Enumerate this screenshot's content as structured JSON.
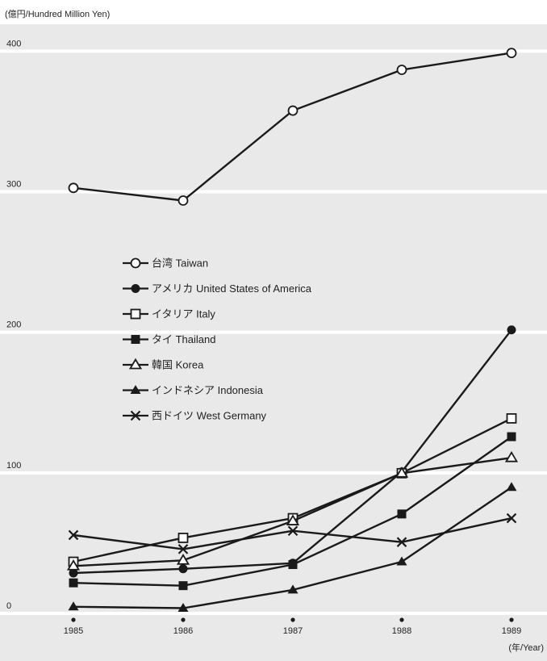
{
  "chart_data": {
    "type": "line",
    "y_unit_label": "(億円/Hundred Million Yen)",
    "x_unit_label": "(年/Year)",
    "title": "",
    "xlabel": "",
    "ylabel": "",
    "x": [
      1985,
      1986,
      1987,
      1988,
      1989
    ],
    "x_tick_labels": [
      "1985",
      "1986",
      "1987",
      "1988",
      "1989"
    ],
    "ylim": [
      0,
      410
    ],
    "y_ticks": [
      0,
      100,
      200,
      300,
      400
    ],
    "y_tick_labels": [
      "0",
      "100",
      "200",
      "300",
      "400"
    ],
    "grid": "horizontal",
    "legend_position": "center-left",
    "background": "#e9e9e9",
    "grid_color": "#ffffff",
    "line_color": "#1a1a1a",
    "series": [
      {
        "name": "台湾 Taiwan",
        "marker": "circle-open",
        "values": [
          301,
          292,
          356,
          385,
          397
        ]
      },
      {
        "name": "アメリカ United States of America",
        "marker": "circle-filled",
        "values": [
          27,
          30,
          34,
          99,
          200
        ]
      },
      {
        "name": "イタリア Italy",
        "marker": "square-open",
        "values": [
          35,
          52,
          66,
          98,
          137
        ]
      },
      {
        "name": "タイ Thailand",
        "marker": "square-filled",
        "values": [
          20,
          18,
          33,
          69,
          124
        ]
      },
      {
        "name": "韓国 Korea",
        "marker": "triangle-open",
        "values": [
          32,
          36,
          64,
          98,
          109
        ]
      },
      {
        "name": "インドネシア Indonesia",
        "marker": "triangle-filled",
        "values": [
          3,
          2,
          15,
          35,
          88
        ]
      },
      {
        "name": "西ドイツ West Germany",
        "marker": "x",
        "values": [
          54,
          44,
          57,
          49,
          66
        ]
      }
    ]
  }
}
